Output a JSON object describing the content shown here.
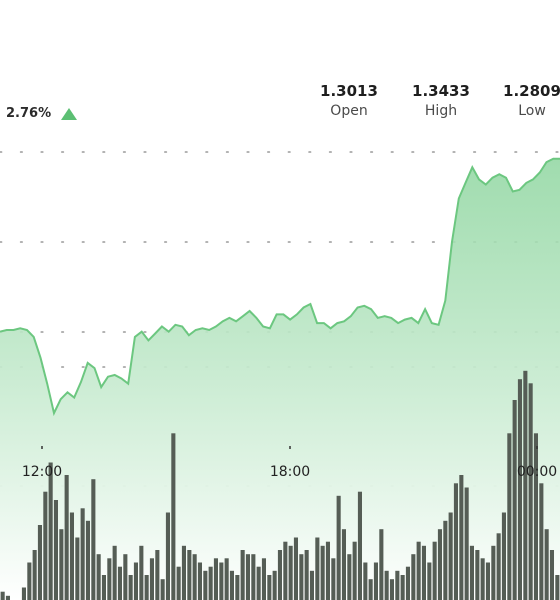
{
  "header": {
    "change_pct": "2.76%",
    "change_direction_icon": "triangle-up-icon",
    "stats": [
      {
        "value": "1.3013",
        "label": "Open"
      },
      {
        "value": "1.3433",
        "label": "High"
      },
      {
        "value": "1.2809",
        "label": "Low"
      }
    ]
  },
  "colors": {
    "line": "#6cc780",
    "area_top": "#8fd6a0",
    "area_bottom": "#ffffff",
    "volume_bar": "#555d55",
    "up_icon": "#5cbf73",
    "grid_dots": "#9a9a9a"
  },
  "chart_data": {
    "type": "line",
    "title": "",
    "xlabel": "",
    "ylabel": "",
    "x_ticks": [
      "12:00",
      "18:00",
      "00:00"
    ],
    "grid": "dotted horizontal",
    "series": [
      {
        "values": [
          1.2985,
          1.2986,
          1.2986,
          1.2987,
          1.2986,
          1.2982,
          1.297,
          1.2955,
          1.2938,
          1.2946,
          1.295,
          1.2947,
          1.2956,
          1.2967,
          1.2964,
          1.2953,
          1.2959,
          1.296,
          1.2958,
          1.2955,
          1.2982,
          1.2985,
          1.298,
          1.2984,
          1.2988,
          1.2985,
          1.2989,
          1.2988,
          1.2983,
          1.2986,
          1.2987,
          1.2986,
          1.2988,
          1.2991,
          1.2993,
          1.2991,
          1.2994,
          1.2997,
          1.2993,
          1.2988,
          1.2987,
          1.2995,
          1.2995,
          1.2992,
          1.2995,
          1.2999,
          1.3001,
          1.299,
          1.299,
          1.2987,
          1.299,
          1.2991,
          1.2994,
          1.2999,
          1.3,
          1.2998,
          1.2993,
          1.2994,
          1.2993,
          1.299,
          1.2992,
          1.2993,
          1.299,
          1.2998,
          1.299,
          1.2989,
          1.3003,
          1.3037,
          1.3062,
          1.3071,
          1.308,
          1.3073,
          1.307,
          1.3074,
          1.3076,
          1.3074,
          1.3066,
          1.3067,
          1.3071,
          1.3073,
          1.3077,
          1.3083,
          1.3085,
          1.3085
        ]
      },
      {
        "name": "volume",
        "values": [
          2,
          1,
          0,
          0,
          3,
          9,
          12,
          18,
          26,
          33,
          24,
          17,
          30,
          21,
          15,
          22,
          19,
          29,
          11,
          6,
          10,
          13,
          8,
          11,
          6,
          9,
          13,
          6,
          10,
          12,
          5,
          21,
          40,
          8,
          13,
          12,
          11,
          9,
          7,
          8,
          10,
          9,
          10,
          7,
          6,
          12,
          11,
          11,
          8,
          10,
          6,
          7,
          12,
          14,
          13,
          15,
          11,
          12,
          7,
          15,
          13,
          14,
          10,
          25,
          17,
          11,
          14,
          26,
          9,
          5,
          9,
          17,
          7,
          5,
          7,
          6,
          8,
          11,
          14,
          13,
          9,
          14,
          17,
          19,
          21,
          28,
          30,
          27,
          13,
          12,
          10,
          9,
          13,
          16,
          21,
          40,
          48,
          53,
          55,
          52,
          40,
          28,
          17,
          12,
          6
        ]
      }
    ]
  }
}
